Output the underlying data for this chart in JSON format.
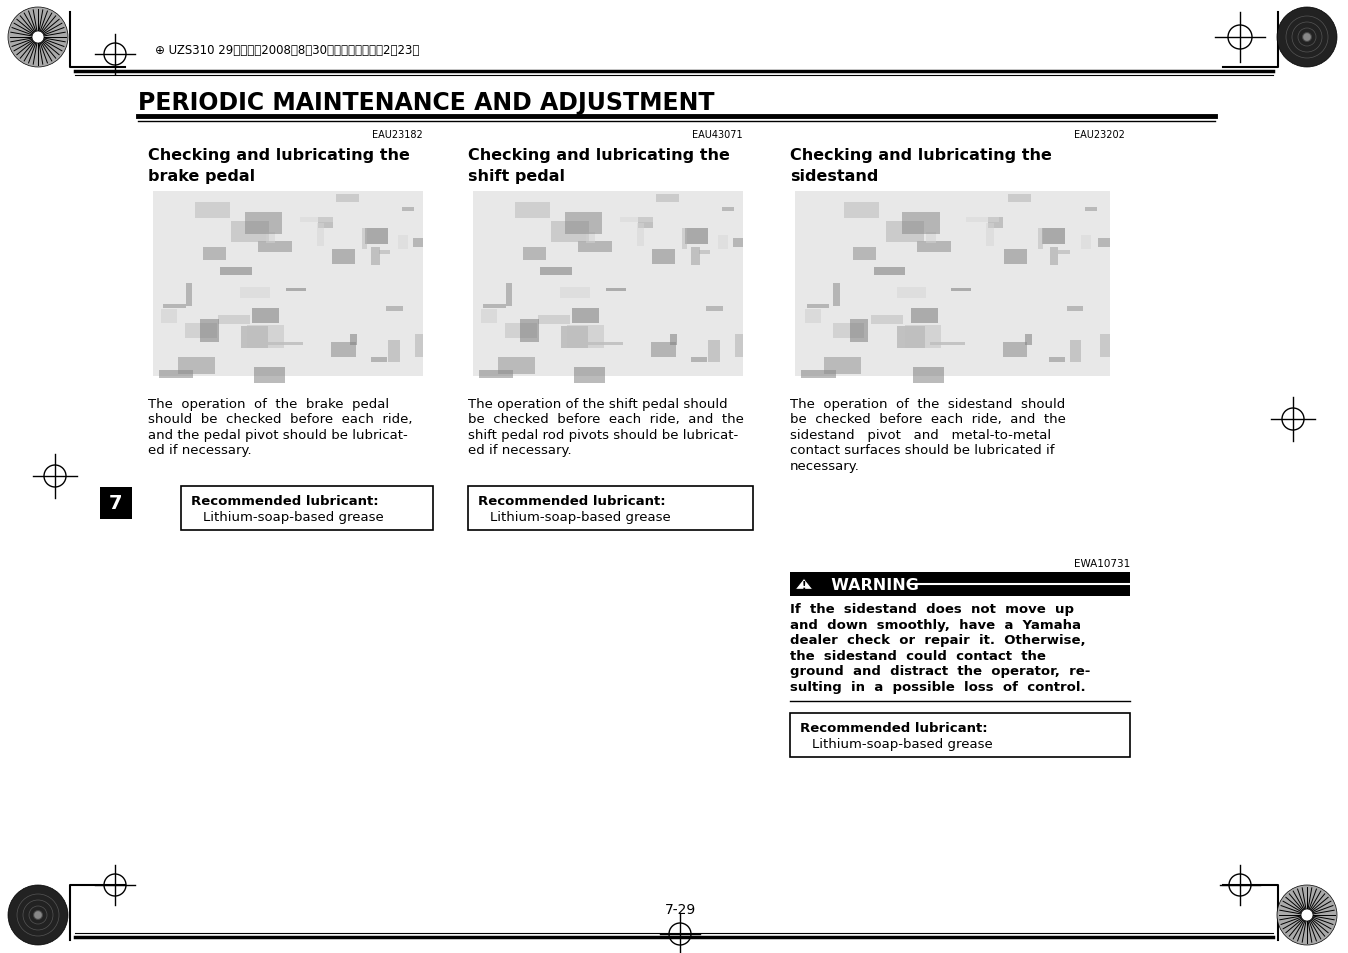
{
  "title": "PERIODIC MAINTENANCE AND ADJUSTMENT",
  "header_code": "UZS310 29ページ　2008年8月30日　土曜日　午後2時23分",
  "col1_code": "EAU23182",
  "col2_code": "EAU43071",
  "col3_code": "EAU23202",
  "col1_title_l1": "Checking and lubricating the",
  "col1_title_l2": "brake pedal",
  "col2_title_l1": "Checking and lubricating the",
  "col2_title_l2": "shift pedal",
  "col3_title_l1": "Checking and lubricating the",
  "col3_title_l2": "sidestand",
  "col1_body_lines": [
    "The  operation  of  the  brake  pedal",
    "should  be  checked  before  each  ride,",
    "and the pedal pivot should be lubricat-",
    "ed if necessary."
  ],
  "col2_body_lines": [
    "The operation of the shift pedal should",
    "be  checked  before  each  ride,  and  the",
    "shift pedal rod pivots should be lubricat-",
    "ed if necessary."
  ],
  "col3_body_lines": [
    "The  operation  of  the  sidestand  should",
    "be  checked  before  each  ride,  and  the",
    "sidestand   pivot   and   metal-to-metal",
    "contact surfaces should be lubricated if",
    "necessary."
  ],
  "rec1_title": "Recommended lubricant:",
  "rec1_body": "Lithium-soap-based grease",
  "rec2_title": "Recommended lubricant:",
  "rec2_body": "Lithium-soap-based grease",
  "warning_code": "EWA10731",
  "warning_title": "WARNING",
  "warning_body_lines": [
    "If  the  sidestand  does  not  move  up",
    "and  down  smoothly,  have  a  Yamaha",
    "dealer  check  or  repair  it.  Otherwise,",
    "the  sidestand  could  contact  the",
    "ground  and  distract  the  operator,  re-",
    "sulting  in  a  possible  loss  of  control."
  ],
  "rec3_title": "Recommended lubricant:",
  "rec3_body": "Lithium-soap-based grease",
  "page_num": "7-29",
  "section_num": "7",
  "bg_color": "#ffffff"
}
